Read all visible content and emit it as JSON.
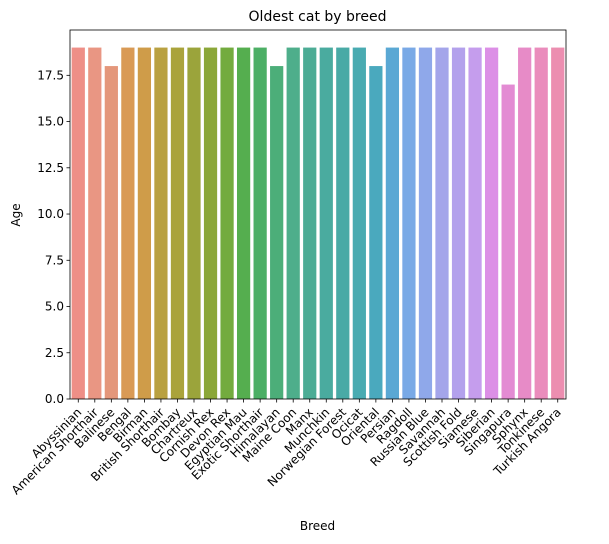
{
  "chart_data": {
    "type": "bar",
    "title": "Oldest cat by breed",
    "xlabel": "Breed",
    "ylabel": "Age",
    "ylim": [
      0,
      19.95
    ],
    "yticks": [
      0.0,
      2.5,
      5.0,
      7.5,
      10.0,
      12.5,
      15.0,
      17.5
    ],
    "ytick_labels": [
      "0.0",
      "2.5",
      "5.0",
      "7.5",
      "10.0",
      "12.5",
      "15.0",
      "17.5"
    ],
    "grid": false,
    "legend": "none",
    "categories": [
      "Abyssinian",
      "American Shorthair",
      "Balinese",
      "Bengal",
      "Birman",
      "British Shorthair",
      "Bombay",
      "Chartreux",
      "Cornish Rex",
      "Devon Rex",
      "Egyptian Mau",
      "Exotic Shorthair",
      "Himalayan",
      "Maine Coon",
      "Manx",
      "Munchkin",
      "Norwegian Forest",
      "Ocicat",
      "Oriental",
      "Persian",
      "Ragdoll",
      "Russian Blue",
      "Savannah",
      "Scottish Fold",
      "Siamese",
      "Siberian",
      "Singapura",
      "Sphynx",
      "Tonkinese",
      "Turkish Angora"
    ],
    "values": [
      19,
      19,
      18,
      19,
      19,
      19,
      19,
      19,
      19,
      19,
      19,
      19,
      18,
      19,
      19,
      19,
      19,
      19,
      18,
      19,
      19,
      19,
      19,
      19,
      19,
      19,
      17,
      19,
      19,
      19
    ],
    "colors": [
      "#ee8f87",
      "#e99683",
      "#e4977b",
      "#d99a55",
      "#cf9c49",
      "#b9a141",
      "#aaa33b",
      "#9ba43b",
      "#8ba738",
      "#73ab3e",
      "#55ae4f",
      "#4caf65",
      "#4cae79",
      "#4eae8b",
      "#4cac95",
      "#4aab9f",
      "#49aaa6",
      "#49abb1",
      "#4aa9be",
      "#5aa8d4",
      "#79a9e6",
      "#8fa8ea",
      "#a4a5ea",
      "#b3a1ec",
      "#c59ded",
      "#dc8fe6",
      "#e38bd3",
      "#e78bc7",
      "#ea8cbc",
      "#ec8eb0"
    ]
  }
}
